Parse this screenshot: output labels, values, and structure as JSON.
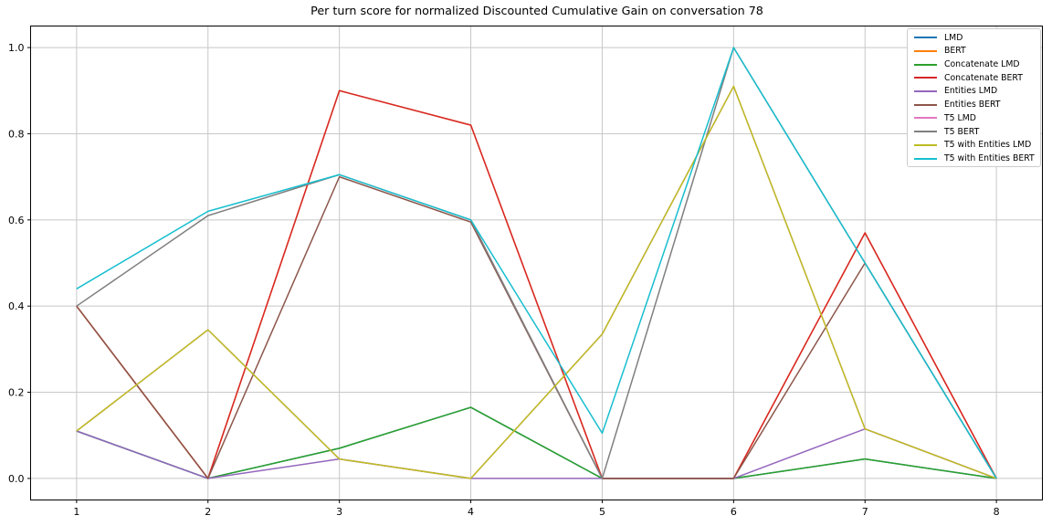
{
  "chart_data": {
    "type": "line",
    "title": "Per turn score for normalized Discounted Cumulative Gain on conversation 78",
    "xlabel": "",
    "ylabel": "",
    "x": [
      1,
      2,
      3,
      4,
      5,
      6,
      7,
      8
    ],
    "xticks": [
      "1",
      "2",
      "3",
      "4",
      "5",
      "6",
      "7",
      "8"
    ],
    "ytick_values": [
      0.0,
      0.2,
      0.4,
      0.6,
      0.8,
      1.0
    ],
    "yticks": [
      "0.0",
      "0.2",
      "0.4",
      "0.6",
      "0.8",
      "1.0"
    ],
    "xlim": [
      0.65,
      8.35
    ],
    "ylim": [
      -0.05,
      1.05
    ],
    "grid": true,
    "legend_position": "upper right",
    "overlap_note": "LMD, BERT and T5 LMD lines are not separately visible: they coincide with (and are drawn beneath) Concatenate LMD, Concatenate BERT and T5 with Entities LMD respectively.",
    "series": [
      {
        "name": "LMD",
        "color": "#1f77b4",
        "values": [
          0.11,
          0.0,
          0.07,
          0.165,
          0.0,
          0.0,
          0.045,
          0.0
        ]
      },
      {
        "name": "BERT",
        "color": "#ff7f0e",
        "values": [
          0.4,
          0.0,
          0.9,
          0.82,
          0.0,
          0.0,
          0.57,
          0.0
        ]
      },
      {
        "name": "Concatenate LMD",
        "color": "#2ca02c",
        "values": [
          0.11,
          0.0,
          0.07,
          0.165,
          0.0,
          0.0,
          0.045,
          0.0
        ]
      },
      {
        "name": "Concatenate BERT",
        "color": "#d62728",
        "values": [
          0.4,
          0.0,
          0.9,
          0.82,
          0.0,
          0.0,
          0.57,
          0.0
        ]
      },
      {
        "name": "Entities LMD",
        "color": "#9467bd",
        "values": [
          0.11,
          0.0,
          0.045,
          0.0,
          0.0,
          0.0,
          0.115,
          0.0
        ]
      },
      {
        "name": "Entities BERT",
        "color": "#8c564b",
        "values": [
          0.4,
          0.0,
          0.7,
          0.595,
          0.0,
          0.0,
          0.5,
          0.0
        ]
      },
      {
        "name": "T5 LMD",
        "color": "#e377c2",
        "values": [
          0.11,
          0.345,
          0.045,
          0.0,
          0.335,
          0.91,
          0.115,
          0.0
        ]
      },
      {
        "name": "T5 BERT",
        "color": "#7f7f7f",
        "values": [
          0.4,
          0.61,
          0.705,
          0.6,
          0.0,
          1.0,
          0.5,
          0.0
        ]
      },
      {
        "name": "T5 with Entities LMD",
        "color": "#bcbd22",
        "values": [
          0.11,
          0.345,
          0.045,
          0.0,
          0.335,
          0.91,
          0.115,
          0.0
        ]
      },
      {
        "name": "T5 with Entities BERT",
        "color": "#17becf",
        "values": [
          0.44,
          0.62,
          0.705,
          0.6,
          0.105,
          1.0,
          0.5,
          0.0
        ]
      }
    ]
  },
  "colors": {
    "background": "#ffffff",
    "grid": "#c8c8c8",
    "spine": "#000000",
    "tick_label": "#000000",
    "legend_border": "#cccccc"
  }
}
